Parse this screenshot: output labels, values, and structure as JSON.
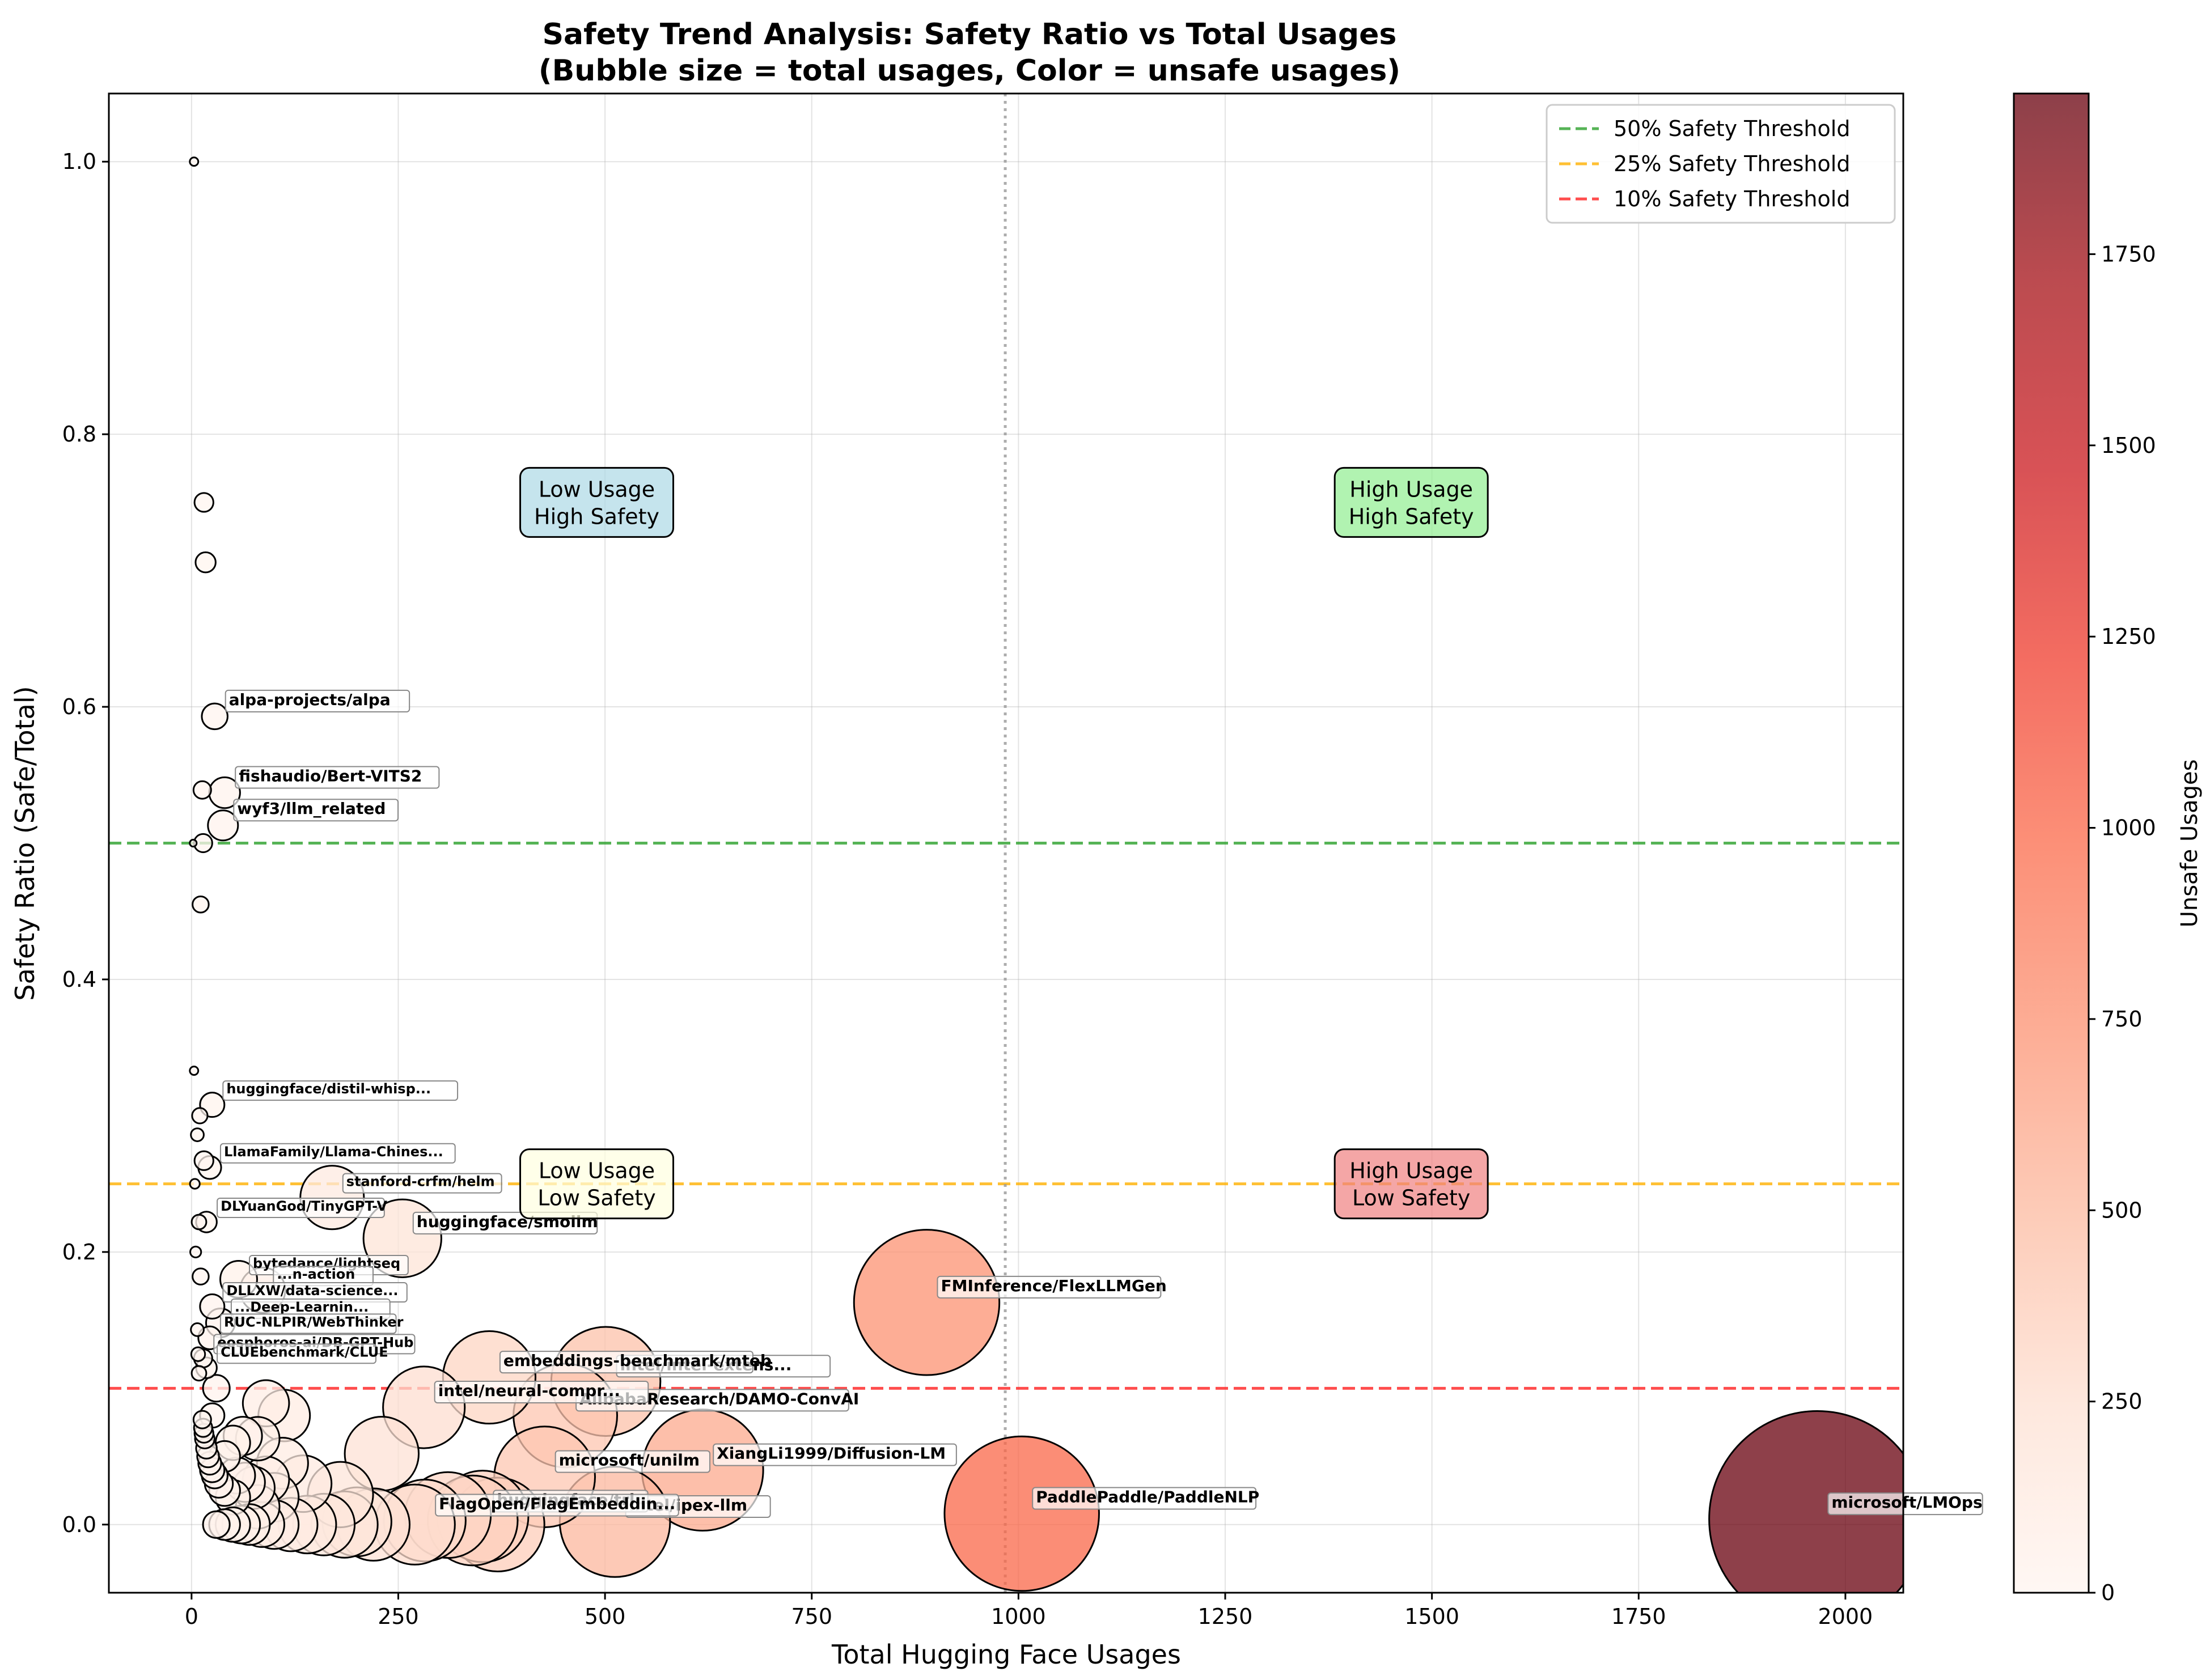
{
  "chart_data": {
    "type": "scatter",
    "title_line1": "Safety Trend Analysis: Safety Ratio vs Total Usages",
    "title_line2": "(Bubble size = total usages, Color = unsafe usages)",
    "xlabel": "Total Hugging Face Usages",
    "ylabel": "Safety Ratio (Safe/Total)",
    "xlim": [
      -100,
      2070
    ],
    "ylim": [
      -0.05,
      1.05
    ],
    "x_ticks": [
      0,
      250,
      500,
      750,
      1000,
      1250,
      1500,
      1750,
      2000
    ],
    "y_ticks": [
      0.0,
      0.2,
      0.4,
      0.6,
      0.8,
      1.0
    ],
    "grid": true,
    "legend_position": "top-right",
    "colorbar": {
      "label": "Unsafe Usages",
      "range": [
        0,
        1960
      ],
      "ticks": [
        0,
        250,
        500,
        750,
        1000,
        1250,
        1500,
        1750
      ],
      "colors": [
        "#fff5f0",
        "#fee0d2",
        "#fcbba1",
        "#fc9272",
        "#fb6a4a",
        "#ef3b2c",
        "#cb181d",
        "#a50f15",
        "#67000d"
      ]
    },
    "thresholds": [
      {
        "label": "50% Safety Threshold",
        "y": 0.5,
        "color": "#2ca02c"
      },
      {
        "label": "25% Safety Threshold",
        "y": 0.25,
        "color": "#ffb000"
      },
      {
        "label": "10% Safety Threshold",
        "y": 0.1,
        "color": "#ff2020"
      }
    ],
    "median_x": 984,
    "quadrants": [
      {
        "label": "Low Usage\nHigh Safety",
        "x": 490,
        "y": 0.75,
        "color": "#add8e6"
      },
      {
        "label": "High Usage\nHigh Safety",
        "x": 1475,
        "y": 0.75,
        "color": "#90ee90"
      },
      {
        "label": "Low Usage\nLow Safety",
        "x": 490,
        "y": 0.25,
        "color": "#ffffe0"
      },
      {
        "label": "High Usage\nLow Safety",
        "x": 1475,
        "y": 0.25,
        "color": "#f08080"
      }
    ],
    "points": [
      {
        "x": 1966,
        "y": 0.004,
        "unsafe": 1958,
        "label": "microsoft/LMOps"
      },
      {
        "x": 1004,
        "y": 0.008,
        "unsafe": 996,
        "label": "PaddlePaddle/PaddleNLP"
      },
      {
        "x": 889,
        "y": 0.163,
        "unsafe": 744,
        "label": "FMInference/FlexLLMGen"
      },
      {
        "x": 618,
        "y": 0.04,
        "unsafe": 593,
        "label": "XiangLi1999/Diffusion-LM"
      },
      {
        "x": 512,
        "y": 0.002,
        "unsafe": 511,
        "label": "intel/ipex-llm"
      },
      {
        "x": 501,
        "y": 0.105,
        "unsafe": 448,
        "label": "intel/intel-extens..."
      },
      {
        "x": 452,
        "y": 0.08,
        "unsafe": 416,
        "label": "AlibabaResearch/DAMO-ConvAI"
      },
      {
        "x": 427,
        "y": 0.035,
        "unsafe": 412,
        "label": "microsoft/unilm"
      },
      {
        "x": 360,
        "y": 0.108,
        "unsafe": 321,
        "label": "embeddings-benchmark/mteb"
      },
      {
        "x": 352,
        "y": 0.006,
        "unsafe": 350,
        "label": "huggingface/trl"
      },
      {
        "x": 282,
        "y": 0.003,
        "unsafe": 281,
        "label": "FlagOpen/FlagEmbeddin..."
      },
      {
        "x": 281,
        "y": 0.086,
        "unsafe": 257,
        "label": "intel/neural-compr..."
      },
      {
        "x": 255,
        "y": 0.21,
        "unsafe": 201,
        "label": "huggingface/smollm"
      },
      {
        "x": 170,
        "y": 0.24,
        "unsafe": 129,
        "label": "stanford-crfm/helm"
      },
      {
        "x": 28,
        "y": 0.593,
        "unsafe": 11,
        "label": "alpa-projects/alpa"
      },
      {
        "x": 40,
        "y": 0.537,
        "unsafe": 19,
        "label": "fishaudio/Bert-VITS2"
      },
      {
        "x": 38,
        "y": 0.513,
        "unsafe": 19,
        "label": "wyf3/llm_related"
      },
      {
        "x": 25,
        "y": 0.308,
        "unsafe": 17,
        "label": "huggingface/distil-whisp..."
      },
      {
        "x": 22,
        "y": 0.262,
        "unsafe": 16,
        "label": "LlamaFamily/Llama-Chines..."
      },
      {
        "x": 18,
        "y": 0.222,
        "unsafe": 14,
        "label": "DLYuanGod/TinyGPT-V"
      },
      {
        "x": 57,
        "y": 0.18,
        "unsafe": 47,
        "label": "bytedance/lightseq"
      },
      {
        "x": 86,
        "y": 0.172,
        "unsafe": 71,
        "label": "...n-action"
      },
      {
        "x": 25,
        "y": 0.16,
        "unsafe": 21,
        "label": "DLLXW/data-science..."
      },
      {
        "x": 35,
        "y": 0.148,
        "unsafe": 30,
        "label": "...Deep-Learnin..."
      },
      {
        "x": 22,
        "y": 0.137,
        "unsafe": 19,
        "label": "RUC-NLPIR/WebThinker"
      },
      {
        "x": 14,
        "y": 0.122,
        "unsafe": 12,
        "label": "eosphoros-ai/DB-GPT-Hub"
      },
      {
        "x": 18,
        "y": 0.115,
        "unsafe": 16,
        "label": "CLUEbenchmark/CLUE"
      },
      {
        "x": 15,
        "y": 0.75,
        "unsafe": 4,
        "label": ""
      },
      {
        "x": 17,
        "y": 0.706,
        "unsafe": 5,
        "label": ""
      },
      {
        "x": 13,
        "y": 0.539,
        "unsafe": 6,
        "label": ""
      },
      {
        "x": 14,
        "y": 0.5,
        "unsafe": 7,
        "label": ""
      },
      {
        "x": 2,
        "y": 0.5,
        "unsafe": 1,
        "label": ""
      },
      {
        "x": 11,
        "y": 0.455,
        "unsafe": 6,
        "label": ""
      },
      {
        "x": 3,
        "y": 1.0,
        "unsafe": 0,
        "label": ""
      },
      {
        "x": 3,
        "y": 0.333,
        "unsafe": 2,
        "label": ""
      },
      {
        "x": 10,
        "y": 0.3,
        "unsafe": 7,
        "label": ""
      },
      {
        "x": 7,
        "y": 0.286,
        "unsafe": 5,
        "label": ""
      },
      {
        "x": 15,
        "y": 0.267,
        "unsafe": 11,
        "label": ""
      },
      {
        "x": 4,
        "y": 0.25,
        "unsafe": 3,
        "label": ""
      },
      {
        "x": 9,
        "y": 0.222,
        "unsafe": 7,
        "label": ""
      },
      {
        "x": 5,
        "y": 0.2,
        "unsafe": 4,
        "label": ""
      },
      {
        "x": 11,
        "y": 0.182,
        "unsafe": 9,
        "label": ""
      },
      {
        "x": 7,
        "y": 0.143,
        "unsafe": 6,
        "label": ""
      },
      {
        "x": 8,
        "y": 0.125,
        "unsafe": 7,
        "label": ""
      },
      {
        "x": 9,
        "y": 0.111,
        "unsafe": 8,
        "label": ""
      },
      {
        "x": 13,
        "y": 0.077,
        "unsafe": 12,
        "label": ""
      },
      {
        "x": 14,
        "y": 0.071,
        "unsafe": 13,
        "label": ""
      },
      {
        "x": 15,
        "y": 0.067,
        "unsafe": 14,
        "label": ""
      },
      {
        "x": 16,
        "y": 0.063,
        "unsafe": 15,
        "label": ""
      },
      {
        "x": 18,
        "y": 0.056,
        "unsafe": 17,
        "label": ""
      },
      {
        "x": 20,
        "y": 0.05,
        "unsafe": 19,
        "label": ""
      },
      {
        "x": 22,
        "y": 0.045,
        "unsafe": 21,
        "label": ""
      },
      {
        "x": 25,
        "y": 0.04,
        "unsafe": 24,
        "label": ""
      },
      {
        "x": 28,
        "y": 0.036,
        "unsafe": 27,
        "label": ""
      },
      {
        "x": 33,
        "y": 0.03,
        "unsafe": 32,
        "label": ""
      },
      {
        "x": 40,
        "y": 0.025,
        "unsafe": 39,
        "label": ""
      },
      {
        "x": 50,
        "y": 0.02,
        "unsafe": 49,
        "label": ""
      },
      {
        "x": 30,
        "y": 0.1,
        "unsafe": 27,
        "label": ""
      },
      {
        "x": 25,
        "y": 0.08,
        "unsafe": 23,
        "label": ""
      },
      {
        "x": 40,
        "y": 0.05,
        "unsafe": 38,
        "label": ""
      },
      {
        "x": 55,
        "y": 0.036,
        "unsafe": 53,
        "label": ""
      },
      {
        "x": 50,
        "y": 0.06,
        "unsafe": 47,
        "label": ""
      },
      {
        "x": 62,
        "y": 0.065,
        "unsafe": 58,
        "label": ""
      },
      {
        "x": 80,
        "y": 0.063,
        "unsafe": 75,
        "label": ""
      },
      {
        "x": 90,
        "y": 0.089,
        "unsafe": 82,
        "label": ""
      },
      {
        "x": 112,
        "y": 0.08,
        "unsafe": 103,
        "label": ""
      },
      {
        "x": 65,
        "y": 0.031,
        "unsafe": 63,
        "label": ""
      },
      {
        "x": 75,
        "y": 0.027,
        "unsafe": 73,
        "label": ""
      },
      {
        "x": 90,
        "y": 0.033,
        "unsafe": 87,
        "label": ""
      },
      {
        "x": 110,
        "y": 0.045,
        "unsafe": 105,
        "label": ""
      },
      {
        "x": 135,
        "y": 0.03,
        "unsafe": 131,
        "label": ""
      },
      {
        "x": 100,
        "y": 0.02,
        "unsafe": 98,
        "label": ""
      },
      {
        "x": 80,
        "y": 0.013,
        "unsafe": 79,
        "label": ""
      },
      {
        "x": 180,
        "y": 0.022,
        "unsafe": 176,
        "label": ""
      },
      {
        "x": 230,
        "y": 0.052,
        "unsafe": 218,
        "label": ""
      },
      {
        "x": 310,
        "y": 0.007,
        "unsafe": 308,
        "label": ""
      },
      {
        "x": 340,
        "y": 0.003,
        "unsafe": 339,
        "label": ""
      },
      {
        "x": 30,
        "y": 0.0,
        "unsafe": 30,
        "label": ""
      },
      {
        "x": 40,
        "y": 0.0,
        "unsafe": 40,
        "label": ""
      },
      {
        "x": 50,
        "y": 0.0,
        "unsafe": 50,
        "label": ""
      },
      {
        "x": 60,
        "y": 0.0,
        "unsafe": 60,
        "label": ""
      },
      {
        "x": 70,
        "y": 0.0,
        "unsafe": 70,
        "label": ""
      },
      {
        "x": 85,
        "y": 0.0,
        "unsafe": 85,
        "label": ""
      },
      {
        "x": 100,
        "y": 0.0,
        "unsafe": 100,
        "label": ""
      },
      {
        "x": 120,
        "y": 0.0,
        "unsafe": 120,
        "label": ""
      },
      {
        "x": 140,
        "y": 0.0,
        "unsafe": 140,
        "label": ""
      },
      {
        "x": 160,
        "y": 0.0,
        "unsafe": 160,
        "label": ""
      },
      {
        "x": 185,
        "y": 0.0,
        "unsafe": 185,
        "label": ""
      },
      {
        "x": 200,
        "y": 0.002,
        "unsafe": 199,
        "label": ""
      },
      {
        "x": 220,
        "y": 0.0,
        "unsafe": 220,
        "label": ""
      },
      {
        "x": 270,
        "y": 0.0,
        "unsafe": 270,
        "label": ""
      },
      {
        "x": 370,
        "y": 0.0,
        "unsafe": 370,
        "label": ""
      }
    ]
  }
}
